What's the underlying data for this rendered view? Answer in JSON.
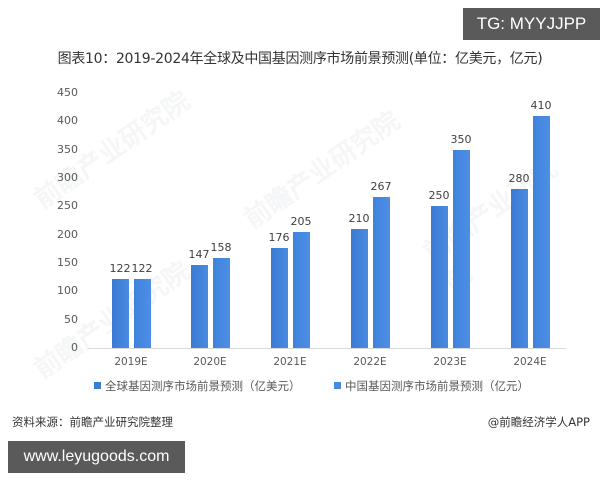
{
  "watermark_top": "TG: MYYJJPP",
  "watermark_bottom": "www.leyugoods.com",
  "title": "图表10：2019-2024年全球及中国基因测序市场前景预测(单位：亿美元，亿元)",
  "source": "资料来源：前瞻产业研究院整理",
  "attribution": "@前瞻经济学人APP",
  "bg_watermark": "前瞻产业研究院",
  "colors": {
    "series1": "#3a7bd5",
    "series2": "#4a8ae0"
  },
  "chart_data": {
    "type": "bar",
    "title": "图表10：2019-2024年全球及中国基因测序市场前景预测(单位：亿美元，亿元)",
    "xlabel": "",
    "ylabel": "",
    "ylim": [
      0,
      450
    ],
    "yticks": [
      0,
      50,
      100,
      150,
      200,
      250,
      300,
      350,
      400,
      450
    ],
    "grid": false,
    "legend_position": "bottom",
    "categories": [
      "2019E",
      "2020E",
      "2021E",
      "2022E",
      "2023E",
      "2024E"
    ],
    "series": [
      {
        "name": "全球基因测序市场前景预测（亿美元）",
        "values": [
          122,
          147,
          176,
          210,
          250,
          280
        ]
      },
      {
        "name": "中国基因测序市场前景预测（亿元）",
        "values": [
          122,
          158,
          205,
          267,
          350,
          410
        ]
      }
    ]
  }
}
